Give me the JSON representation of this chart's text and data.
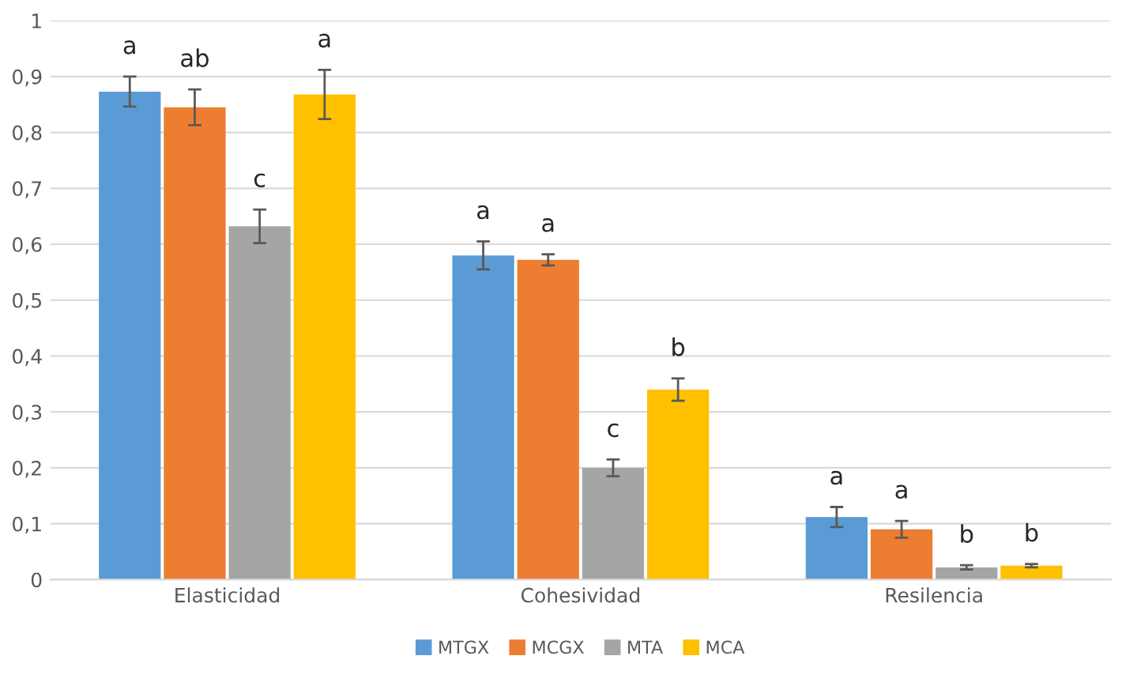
{
  "chart_data": {
    "type": "bar",
    "categories": [
      "Elasticidad",
      "Cohesividad",
      "Resilencia"
    ],
    "series": [
      {
        "name": "MTGX",
        "color": "#5b9bd5",
        "values": [
          0.873,
          0.58,
          0.112
        ],
        "errors": [
          0.027,
          0.025,
          0.018
        ]
      },
      {
        "name": "MCGX",
        "color": "#ed7d31",
        "values": [
          0.845,
          0.572,
          0.09
        ],
        "errors": [
          0.032,
          0.01,
          0.015
        ]
      },
      {
        "name": "MTA",
        "color": "#a5a5a5",
        "values": [
          0.632,
          0.2,
          0.022
        ],
        "errors": [
          0.03,
          0.015,
          0.004
        ]
      },
      {
        "name": "MCA",
        "color": "#ffc000",
        "values": [
          0.868,
          0.34,
          0.025
        ],
        "errors": [
          0.044,
          0.02,
          0.003
        ]
      }
    ],
    "ylim": [
      0,
      1
    ],
    "yticks": [
      0,
      {
        "value": 0.1,
        "label": "0,1"
      },
      {
        "value": 0.2,
        "label": "0,2"
      },
      {
        "value": 0.3,
        "label": "0,3"
      },
      {
        "value": 0.4,
        "label": "0,4"
      },
      {
        "value": 0.5,
        "label": "0,5"
      },
      {
        "value": 0.6,
        "label": "0,6"
      },
      {
        "value": 0.7,
        "label": "0,7"
      },
      {
        "value": 0.8,
        "label": "0,8"
      },
      {
        "value": 0.9,
        "label": "0,9"
      },
      1
    ],
    "grid": "y",
    "legend": "bottom",
    "annotations": [
      "a",
      "ab",
      "c",
      "a",
      "a",
      "a",
      "c",
      "b",
      "a",
      "a",
      "b",
      "b"
    ]
  }
}
